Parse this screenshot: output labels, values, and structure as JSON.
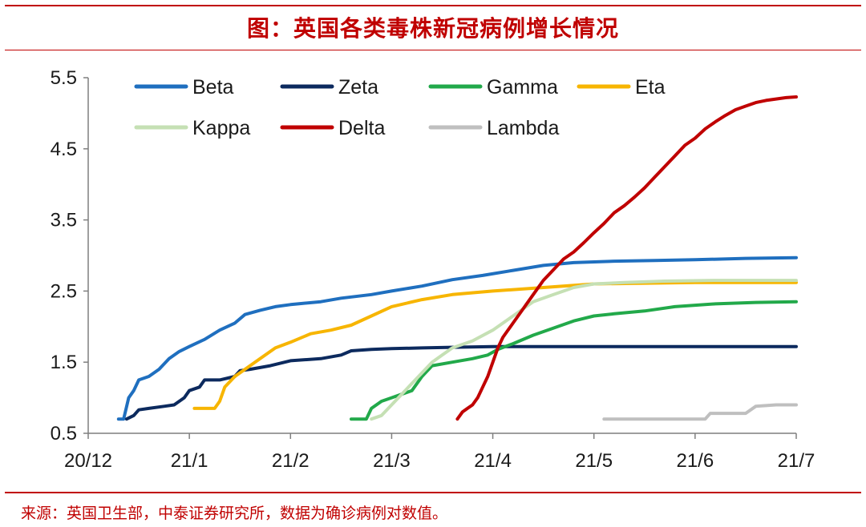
{
  "header": {
    "title": "图：英国各类毒株新冠病例增长情况"
  },
  "footer": {
    "source": "来源：英国卫生部，中泰证券研究所，数据为确诊病例对数值。"
  },
  "chart_data": {
    "type": "line",
    "title": "图：英国各类毒株新冠病例增长情况",
    "xlabel": "",
    "ylabel": "",
    "x_tick_labels": [
      "20/12",
      "21/1",
      "21/2",
      "21/3",
      "21/4",
      "21/5",
      "21/6",
      "21/7"
    ],
    "x_unit": "months since 2020-12-01 (0 = 20/12, 7 = 21/7)",
    "xlim": [
      0,
      7
    ],
    "ylim": [
      0.5,
      5.5
    ],
    "y_ticks": [
      0.5,
      1.5,
      2.5,
      3.5,
      4.5,
      5.5
    ],
    "y_tick_labels": [
      "0.5",
      "1.5",
      "2.5",
      "3.5",
      "4.5",
      "5.5"
    ],
    "grid": false,
    "legend_position": "top-left",
    "series": [
      {
        "name": "Beta",
        "color": "#1f6fbf",
        "points": [
          [
            0.3,
            0.7
          ],
          [
            0.35,
            0.7
          ],
          [
            0.4,
            1.0
          ],
          [
            0.45,
            1.1
          ],
          [
            0.5,
            1.25
          ],
          [
            0.6,
            1.3
          ],
          [
            0.7,
            1.4
          ],
          [
            0.8,
            1.55
          ],
          [
            0.9,
            1.65
          ],
          [
            1.0,
            1.72
          ],
          [
            1.15,
            1.82
          ],
          [
            1.3,
            1.95
          ],
          [
            1.45,
            2.05
          ],
          [
            1.55,
            2.17
          ],
          [
            1.7,
            2.23
          ],
          [
            1.85,
            2.28
          ],
          [
            2.0,
            2.31
          ],
          [
            2.3,
            2.35
          ],
          [
            2.5,
            2.4
          ],
          [
            2.8,
            2.45
          ],
          [
            3.0,
            2.5
          ],
          [
            3.3,
            2.57
          ],
          [
            3.6,
            2.66
          ],
          [
            3.9,
            2.72
          ],
          [
            4.2,
            2.79
          ],
          [
            4.5,
            2.86
          ],
          [
            4.8,
            2.9
          ],
          [
            5.2,
            2.92
          ],
          [
            5.6,
            2.93
          ],
          [
            6.0,
            2.94
          ],
          [
            6.5,
            2.96
          ],
          [
            7.0,
            2.97
          ]
        ]
      },
      {
        "name": "Zeta",
        "color": "#0c2a5e",
        "points": [
          [
            0.38,
            0.7
          ],
          [
            0.45,
            0.75
          ],
          [
            0.5,
            0.83
          ],
          [
            0.6,
            0.85
          ],
          [
            0.75,
            0.88
          ],
          [
            0.85,
            0.9
          ],
          [
            0.95,
            1.0
          ],
          [
            1.0,
            1.1
          ],
          [
            1.1,
            1.15
          ],
          [
            1.15,
            1.25
          ],
          [
            1.3,
            1.25
          ],
          [
            1.45,
            1.3
          ],
          [
            1.5,
            1.38
          ],
          [
            1.6,
            1.4
          ],
          [
            1.8,
            1.45
          ],
          [
            2.0,
            1.52
          ],
          [
            2.3,
            1.55
          ],
          [
            2.5,
            1.6
          ],
          [
            2.6,
            1.66
          ],
          [
            2.8,
            1.68
          ],
          [
            3.0,
            1.69
          ],
          [
            3.3,
            1.7
          ],
          [
            3.6,
            1.71
          ],
          [
            4.0,
            1.72
          ],
          [
            5.0,
            1.72
          ],
          [
            6.0,
            1.72
          ],
          [
            7.0,
            1.72
          ]
        ]
      },
      {
        "name": "Gamma",
        "color": "#22a94a",
        "points": [
          [
            2.6,
            0.7
          ],
          [
            2.75,
            0.7
          ],
          [
            2.8,
            0.85
          ],
          [
            2.9,
            0.95
          ],
          [
            3.0,
            1.0
          ],
          [
            3.1,
            1.05
          ],
          [
            3.2,
            1.1
          ],
          [
            3.3,
            1.3
          ],
          [
            3.4,
            1.45
          ],
          [
            3.6,
            1.5
          ],
          [
            3.8,
            1.55
          ],
          [
            3.95,
            1.6
          ],
          [
            4.05,
            1.68
          ],
          [
            4.2,
            1.76
          ],
          [
            4.4,
            1.88
          ],
          [
            4.6,
            1.98
          ],
          [
            4.8,
            2.08
          ],
          [
            5.0,
            2.15
          ],
          [
            5.2,
            2.18
          ],
          [
            5.5,
            2.22
          ],
          [
            5.8,
            2.28
          ],
          [
            6.2,
            2.32
          ],
          [
            6.6,
            2.34
          ],
          [
            7.0,
            2.35
          ]
        ]
      },
      {
        "name": "Eta",
        "color": "#f7b500",
        "points": [
          [
            1.05,
            0.85
          ],
          [
            1.15,
            0.85
          ],
          [
            1.25,
            0.85
          ],
          [
            1.3,
            0.95
          ],
          [
            1.35,
            1.15
          ],
          [
            1.45,
            1.3
          ],
          [
            1.55,
            1.4
          ],
          [
            1.7,
            1.55
          ],
          [
            1.85,
            1.7
          ],
          [
            2.0,
            1.78
          ],
          [
            2.2,
            1.9
          ],
          [
            2.4,
            1.95
          ],
          [
            2.6,
            2.02
          ],
          [
            2.8,
            2.15
          ],
          [
            3.0,
            2.28
          ],
          [
            3.3,
            2.38
          ],
          [
            3.6,
            2.45
          ],
          [
            4.0,
            2.5
          ],
          [
            4.5,
            2.55
          ],
          [
            5.0,
            2.6
          ],
          [
            6.0,
            2.62
          ],
          [
            7.0,
            2.62
          ]
        ]
      },
      {
        "name": "Kappa",
        "color": "#c5e0b4",
        "points": [
          [
            2.8,
            0.7
          ],
          [
            2.9,
            0.75
          ],
          [
            3.0,
            0.9
          ],
          [
            3.1,
            1.05
          ],
          [
            3.2,
            1.2
          ],
          [
            3.3,
            1.35
          ],
          [
            3.4,
            1.5
          ],
          [
            3.5,
            1.6
          ],
          [
            3.6,
            1.7
          ],
          [
            3.8,
            1.8
          ],
          [
            4.0,
            1.95
          ],
          [
            4.2,
            2.15
          ],
          [
            4.4,
            2.35
          ],
          [
            4.6,
            2.45
          ],
          [
            4.8,
            2.55
          ],
          [
            5.0,
            2.6
          ],
          [
            5.3,
            2.62
          ],
          [
            5.7,
            2.64
          ],
          [
            6.2,
            2.65
          ],
          [
            7.0,
            2.65
          ]
        ]
      },
      {
        "name": "Delta",
        "color": "#c00000",
        "points": [
          [
            3.65,
            0.7
          ],
          [
            3.7,
            0.8
          ],
          [
            3.75,
            0.85
          ],
          [
            3.8,
            0.9
          ],
          [
            3.85,
            1.0
          ],
          [
            3.9,
            1.15
          ],
          [
            3.95,
            1.3
          ],
          [
            4.0,
            1.5
          ],
          [
            4.05,
            1.7
          ],
          [
            4.1,
            1.85
          ],
          [
            4.2,
            2.05
          ],
          [
            4.3,
            2.25
          ],
          [
            4.4,
            2.45
          ],
          [
            4.5,
            2.65
          ],
          [
            4.6,
            2.8
          ],
          [
            4.7,
            2.95
          ],
          [
            4.8,
            3.05
          ],
          [
            4.9,
            3.18
          ],
          [
            5.0,
            3.32
          ],
          [
            5.1,
            3.45
          ],
          [
            5.2,
            3.6
          ],
          [
            5.3,
            3.7
          ],
          [
            5.4,
            3.82
          ],
          [
            5.5,
            3.95
          ],
          [
            5.6,
            4.1
          ],
          [
            5.7,
            4.25
          ],
          [
            5.8,
            4.4
          ],
          [
            5.9,
            4.55
          ],
          [
            6.0,
            4.65
          ],
          [
            6.1,
            4.78
          ],
          [
            6.2,
            4.88
          ],
          [
            6.3,
            4.97
          ],
          [
            6.4,
            5.05
          ],
          [
            6.5,
            5.1
          ],
          [
            6.6,
            5.15
          ],
          [
            6.7,
            5.18
          ],
          [
            6.8,
            5.2
          ],
          [
            6.9,
            5.22
          ],
          [
            7.0,
            5.23
          ]
        ]
      },
      {
        "name": "Lambda",
        "color": "#bfbfbf",
        "points": [
          [
            5.1,
            0.7
          ],
          [
            5.6,
            0.7
          ],
          [
            6.1,
            0.7
          ],
          [
            6.15,
            0.78
          ],
          [
            6.5,
            0.78
          ],
          [
            6.6,
            0.88
          ],
          [
            6.8,
            0.9
          ],
          [
            7.0,
            0.9
          ]
        ]
      }
    ]
  }
}
